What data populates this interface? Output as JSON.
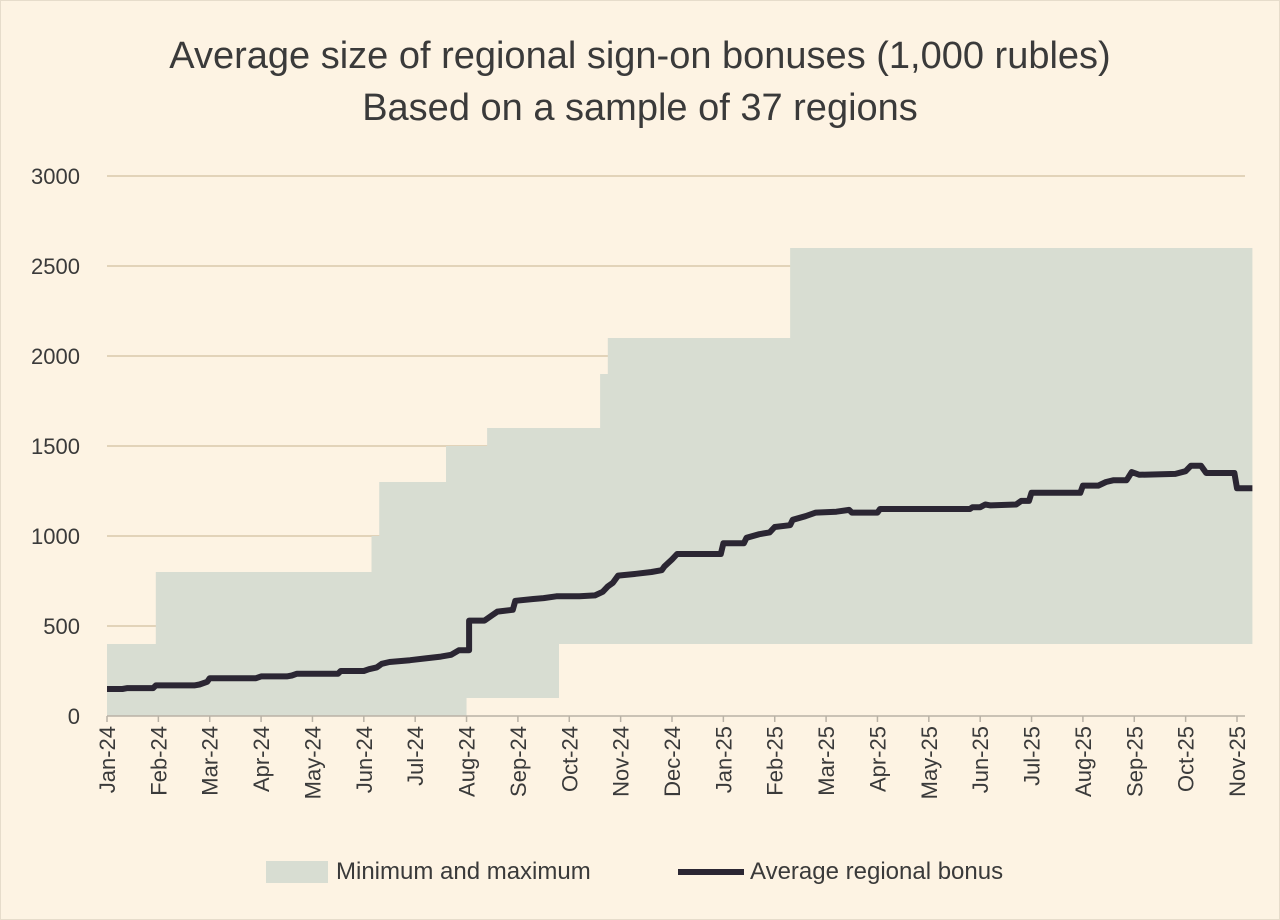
{
  "chart_data": {
    "type": "area",
    "title_line1": "Average size of regional sign-on bonuses (1,000 rubles)",
    "title_line2": "Based on a sample of 37 regions",
    "xlabel": "",
    "ylabel": "",
    "ylim": [
      0,
      3000
    ],
    "yticks": [
      0,
      500,
      1000,
      1500,
      2000,
      2500,
      3000
    ],
    "grid": true,
    "legend_position": "bottom",
    "categories": [
      "Jan-24",
      "Feb-24",
      "Mar-24",
      "Apr-24",
      "May-24",
      "Jun-24",
      "Jul-24",
      "Aug-24",
      "Sep-24",
      "Oct-24",
      "Nov-24",
      "Dec-24",
      "Jan-25",
      "Feb-25",
      "Mar-25",
      "Apr-25",
      "May-25",
      "Jun-25",
      "Jul-25",
      "Aug-25",
      "Sep-25",
      "Oct-25",
      "Nov-25"
    ],
    "series": [
      {
        "name": "Minimum and maximum",
        "kind": "band",
        "color": "#d8ddd2",
        "max": [
          [
            0,
            400
          ],
          [
            0.95,
            400
          ],
          [
            0.95,
            800
          ],
          [
            5.15,
            800
          ],
          [
            5.15,
            1000
          ],
          [
            5.3,
            1000
          ],
          [
            5.3,
            1300
          ],
          [
            6.6,
            1300
          ],
          [
            6.6,
            1500
          ],
          [
            7.4,
            1500
          ],
          [
            7.4,
            1600
          ],
          [
            9.6,
            1600
          ],
          [
            9.6,
            1900
          ],
          [
            9.75,
            1900
          ],
          [
            9.75,
            2100
          ],
          [
            13.3,
            2100
          ],
          [
            13.3,
            2600
          ],
          [
            22.3,
            2600
          ]
        ],
        "min": [
          [
            0,
            0
          ],
          [
            7.0,
            0
          ],
          [
            7.0,
            100
          ],
          [
            8.8,
            100
          ],
          [
            8.8,
            400
          ],
          [
            22.3,
            400
          ]
        ]
      },
      {
        "name": "Average regional bonus",
        "kind": "line",
        "color": "#2b2633",
        "values": [
          [
            0,
            150
          ],
          [
            0.3,
            150
          ],
          [
            0.4,
            155
          ],
          [
            0.9,
            155
          ],
          [
            0.95,
            170
          ],
          [
            1.7,
            170
          ],
          [
            1.8,
            175
          ],
          [
            1.95,
            190
          ],
          [
            2.0,
            210
          ],
          [
            2.9,
            210
          ],
          [
            3.0,
            220
          ],
          [
            3.5,
            220
          ],
          [
            3.6,
            225
          ],
          [
            3.7,
            235
          ],
          [
            4.5,
            235
          ],
          [
            4.55,
            250
          ],
          [
            5.0,
            250
          ],
          [
            5.1,
            260
          ],
          [
            5.25,
            270
          ],
          [
            5.35,
            290
          ],
          [
            5.5,
            300
          ],
          [
            5.9,
            310
          ],
          [
            6.2,
            320
          ],
          [
            6.5,
            330
          ],
          [
            6.7,
            340
          ],
          [
            6.85,
            365
          ],
          [
            7.05,
            365
          ],
          [
            7.05,
            530
          ],
          [
            7.35,
            530
          ],
          [
            7.5,
            560
          ],
          [
            7.6,
            580
          ],
          [
            7.9,
            590
          ],
          [
            7.95,
            640
          ],
          [
            8.3,
            650
          ],
          [
            8.5,
            655
          ],
          [
            8.75,
            665
          ],
          [
            9.2,
            665
          ],
          [
            9.5,
            670
          ],
          [
            9.65,
            690
          ],
          [
            9.75,
            720
          ],
          [
            9.85,
            740
          ],
          [
            9.95,
            780
          ],
          [
            10.3,
            790
          ],
          [
            10.6,
            800
          ],
          [
            10.8,
            810
          ],
          [
            10.85,
            830
          ],
          [
            11.0,
            870
          ],
          [
            11.1,
            900
          ],
          [
            11.95,
            900
          ],
          [
            12.0,
            960
          ],
          [
            12.4,
            960
          ],
          [
            12.45,
            990
          ],
          [
            12.7,
            1010
          ],
          [
            12.9,
            1020
          ],
          [
            13.0,
            1050
          ],
          [
            13.3,
            1060
          ],
          [
            13.35,
            1090
          ],
          [
            13.6,
            1110
          ],
          [
            13.8,
            1130
          ],
          [
            14.2,
            1135
          ],
          [
            14.45,
            1145
          ],
          [
            14.5,
            1130
          ],
          [
            15.0,
            1130
          ],
          [
            15.05,
            1150
          ],
          [
            16.8,
            1150
          ],
          [
            16.85,
            1160
          ],
          [
            17.0,
            1160
          ],
          [
            17.1,
            1175
          ],
          [
            17.2,
            1170
          ],
          [
            17.7,
            1175
          ],
          [
            17.8,
            1195
          ],
          [
            17.95,
            1195
          ],
          [
            18.0,
            1240
          ],
          [
            18.95,
            1240
          ],
          [
            19.0,
            1280
          ],
          [
            19.3,
            1280
          ],
          [
            19.45,
            1300
          ],
          [
            19.6,
            1310
          ],
          [
            19.85,
            1310
          ],
          [
            19.95,
            1355
          ],
          [
            20.1,
            1340
          ],
          [
            20.8,
            1345
          ],
          [
            21.0,
            1360
          ],
          [
            21.1,
            1390
          ],
          [
            21.3,
            1390
          ],
          [
            21.4,
            1350
          ],
          [
            21.95,
            1350
          ],
          [
            22.0,
            1265
          ],
          [
            22.3,
            1265
          ]
        ]
      }
    ]
  }
}
